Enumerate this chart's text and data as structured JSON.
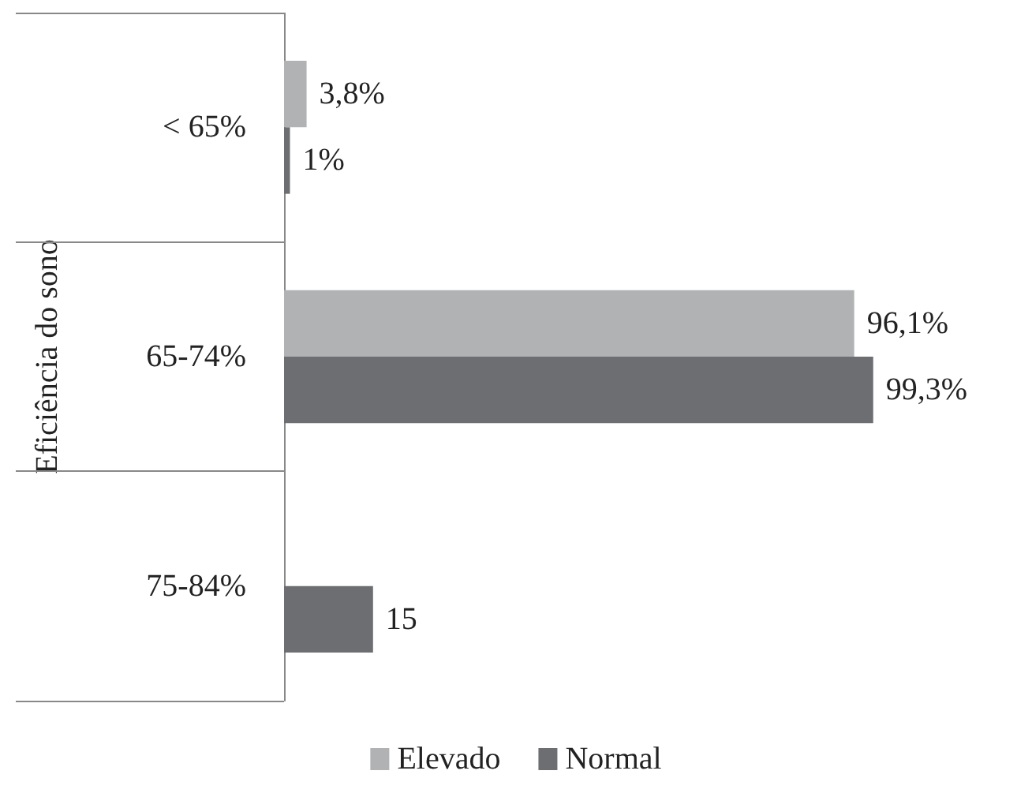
{
  "chart_data": {
    "type": "bar",
    "orientation": "horizontal",
    "ylabel": "Eficiência do sono",
    "categories": [
      "< 65%",
      "65-74%",
      "75-84%"
    ],
    "series": [
      {
        "name": "Elevado",
        "color": "#b1b2b4",
        "values": [
          3.8,
          96.1,
          null
        ],
        "value_labels": [
          "3,8%",
          "96,1%",
          null
        ]
      },
      {
        "name": "Normal",
        "color": "#6d6e71",
        "values": [
          1,
          99.3,
          15
        ],
        "value_labels": [
          "1%",
          "99,3%",
          "15"
        ]
      }
    ],
    "legend": "bottom",
    "grid": false
  }
}
